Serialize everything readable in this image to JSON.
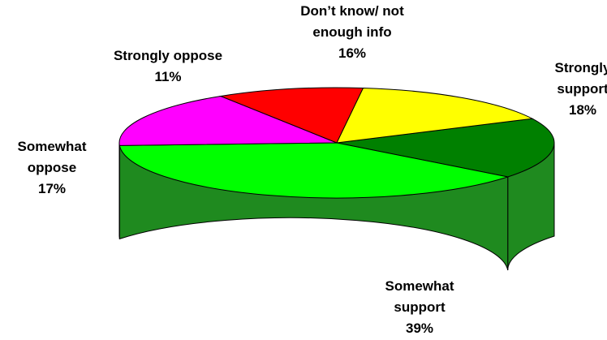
{
  "chart_data": {
    "type": "pie",
    "title": "",
    "slices": [
      {
        "label_lines": [
          "Strongly",
          "support"
        ],
        "pct_text": "18%",
        "value": 18,
        "color": "#008000",
        "side_color": "#1f8a1f"
      },
      {
        "label_lines": [
          "Somewhat",
          "support"
        ],
        "pct_text": "39%",
        "value": 39,
        "color": "#00ff00",
        "side_color": "#1f8a1f"
      },
      {
        "label_lines": [
          "Somewhat",
          "oppose"
        ],
        "pct_text": "17%",
        "value": 17,
        "color": "#ff00ff",
        "side_color": "#800080"
      },
      {
        "label_lines": [
          "Strongly oppose"
        ],
        "pct_text": "11%",
        "value": 11,
        "color": "#ff0000",
        "side_color": "#b00000"
      },
      {
        "label_lines": [
          "Don’t know/ not",
          "enough info"
        ],
        "pct_text": "16%",
        "value": 16,
        "color": "#ffff00",
        "side_color": "#b0b000"
      }
    ]
  }
}
